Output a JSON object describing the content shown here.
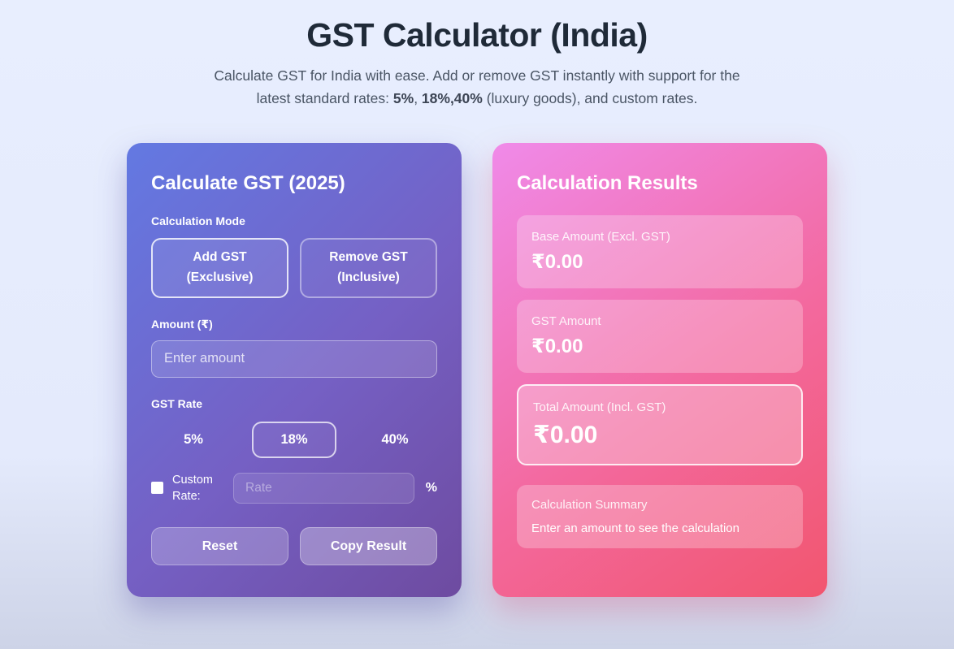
{
  "page": {
    "title": "GST Calculator (India)",
    "subtitle": {
      "part1": "Calculate GST for India with ease. Add or remove GST instantly with support for the latest standard rates: ",
      "bold1": "5%",
      "part2": ", ",
      "bold2": "18%,40%",
      "part3": " (luxury goods), and custom rates."
    }
  },
  "calculator": {
    "title": "Calculate GST (2025)",
    "mode_label": "Calculation Mode",
    "modes": [
      {
        "line1": "Add GST",
        "line2": "(Exclusive)",
        "selected": true
      },
      {
        "line1": "Remove GST",
        "line2": "(Inclusive)",
        "selected": false
      }
    ],
    "amount_label": "Amount (₹)",
    "amount_placeholder": "Enter amount",
    "rate_label": "GST Rate",
    "rates": [
      {
        "label": "5%",
        "selected": false
      },
      {
        "label": "18%",
        "selected": true
      },
      {
        "label": "40%",
        "selected": false
      }
    ],
    "custom_rate": {
      "label": "Custom Rate:",
      "placeholder": "Rate",
      "suffix": "%",
      "checked": false
    },
    "reset_label": "Reset",
    "copy_label": "Copy Result"
  },
  "results": {
    "title": "Calculation Results",
    "items": [
      {
        "label": "Base Amount (Excl. GST)",
        "value": "₹0.00"
      },
      {
        "label": "GST Amount",
        "value": "₹0.00"
      },
      {
        "label": "Total Amount (Incl. GST)",
        "value": "₹0.00"
      }
    ],
    "summary": {
      "label": "Calculation Summary",
      "text": "Enter an amount to see the calculation"
    }
  },
  "colors": {
    "page_background_top": "#e8eefe",
    "page_background_bottom": "#cdd3e7",
    "title_text": "#1f2a38",
    "subtitle_text": "#4a5565",
    "calculator_gradient_start": "#6379e2",
    "calculator_gradient_end": "#6e4ba0",
    "results_gradient_start": "#f08ae9",
    "results_gradient_end": "#f2566f",
    "card_text": "#ffffff"
  }
}
